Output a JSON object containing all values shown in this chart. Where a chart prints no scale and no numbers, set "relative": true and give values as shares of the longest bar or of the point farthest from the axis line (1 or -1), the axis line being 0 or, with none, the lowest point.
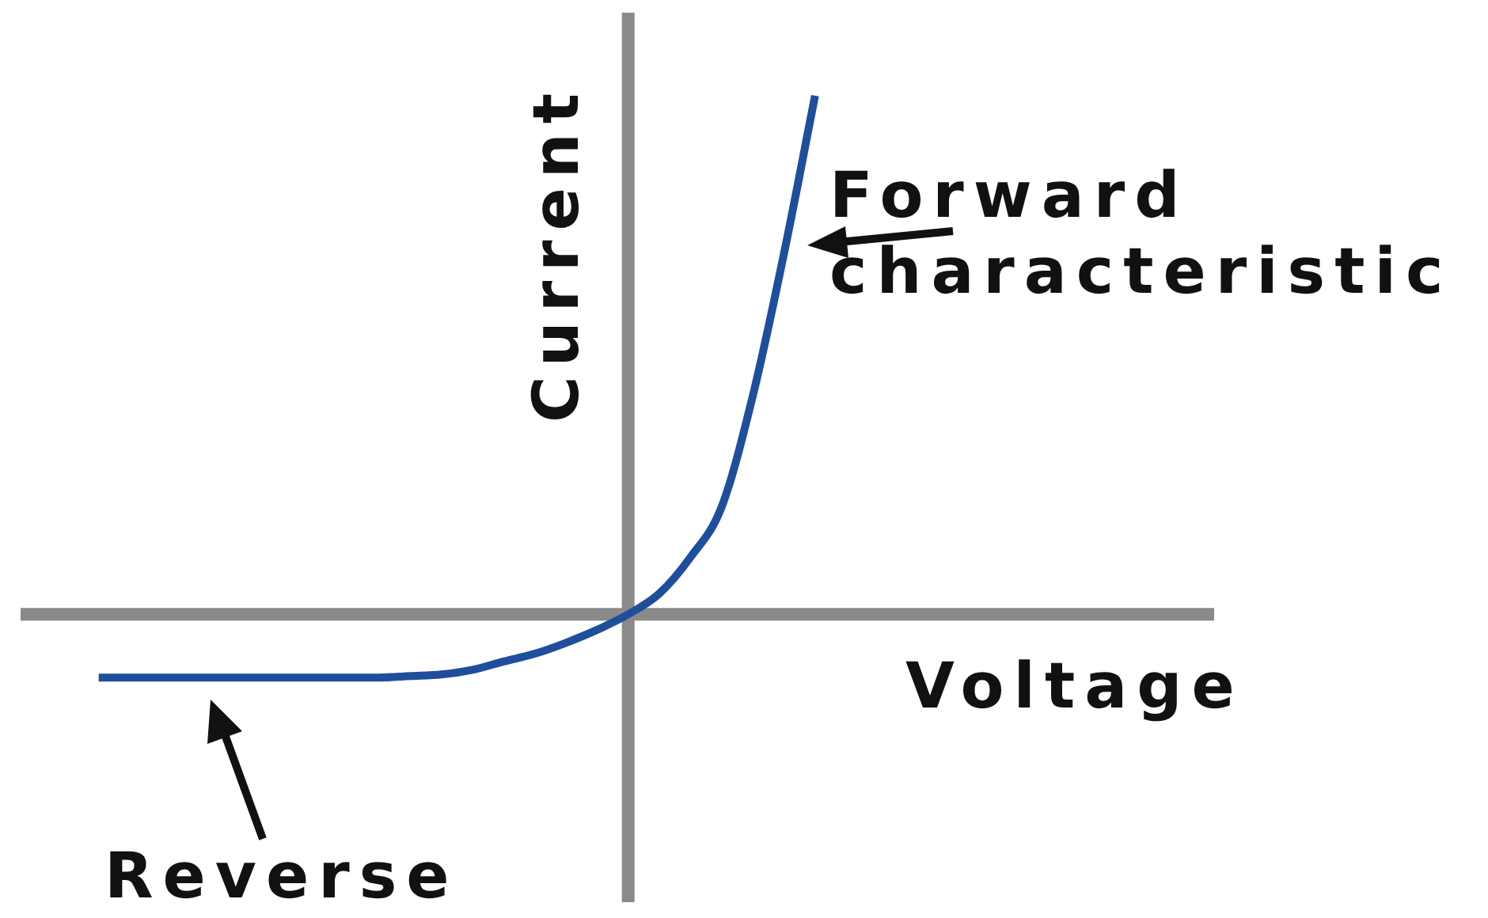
{
  "chart_data": {
    "type": "line",
    "relative": true,
    "xlabel": "Voltage",
    "ylabel": "Current",
    "categories": [
      null,
      null,
      null,
      null,
      null,
      null,
      null,
      null,
      null,
      null,
      null,
      null,
      null,
      null,
      null,
      null,
      null,
      null,
      null,
      null,
      null,
      null,
      null,
      null,
      null,
      null,
      null,
      null,
      null,
      null,
      null,
      null,
      null,
      null,
      null,
      null,
      null,
      null
    ],
    "series": [
      {
        "color": "#1f4e9c",
        "values": [
          null,
          null,
          -0.122,
          -0.122,
          -0.122,
          -0.122,
          -0.122,
          -0.122,
          -0.122,
          -0.122,
          -0.122,
          -0.122,
          -0.119,
          -0.116,
          -0.107,
          -0.091,
          -0.076,
          -0.055,
          -0.03,
          0,
          0.04,
          0.11,
          0.207,
          0.421,
          0.695,
          1,
          null,
          null,
          null,
          null,
          null,
          null,
          null,
          null,
          null,
          null,
          null,
          null
        ]
      }
    ],
    "annotations": [
      "Forward characteristic",
      "Reverse"
    ],
    "legend": false
  }
}
